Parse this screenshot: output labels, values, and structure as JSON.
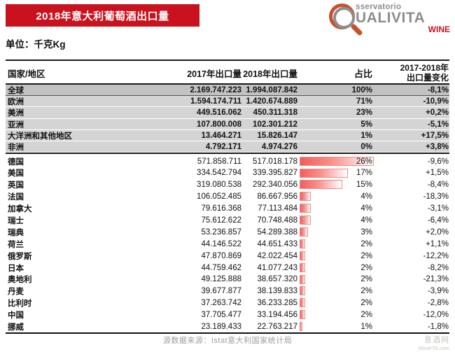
{
  "header": {
    "title": "2018年意大利葡萄酒出口量",
    "unit_label": "单位：千克Kg",
    "logo": {
      "line1": "sservatorio",
      "line2": "UALIVITA",
      "line3": "WINE"
    }
  },
  "table_header": {
    "change_line1": "2017-2018年",
    "change_line2": "出口量变化"
  },
  "footer": {
    "source": "源数据来源：Istat意大利国家统计局",
    "watermark_line1": "意酒网",
    "watermark_line2": "WineITA.com"
  },
  "colors": {
    "banner_red": "#c9121d",
    "logo_gray": "#8d8d8d",
    "logo_red_ring": "#c8502f",
    "total_row_bg": "#c2c2c2",
    "region_row_bg": "#d4d4d4",
    "bar_red": "#f15e5b",
    "bar_border": "#ec8b88"
  },
  "chart_data": {
    "type": "table",
    "title": "2018年意大利葡萄酒出口量",
    "unit": "千克Kg",
    "columns": [
      "国家/地区",
      "2017年出口量",
      "2018年出口量",
      "占比",
      "2017-2018年出口量变化"
    ],
    "region_rows": [
      {
        "name": "全球",
        "y2017": "2.169.747.223",
        "y2018": "1.994.087.842",
        "share": "100%",
        "share_pct": 100,
        "change": "-8,1%",
        "total": true
      },
      {
        "name": "欧洲",
        "y2017": "1.594.174.711",
        "y2018": "1.420.674.889",
        "share": "71%",
        "share_pct": 71,
        "change": "-10,9%"
      },
      {
        "name": "美洲",
        "y2017": "449.516.062",
        "y2018": "450.311.318",
        "share": "23%",
        "share_pct": 23,
        "change": "+0,2%"
      },
      {
        "name": "亚洲",
        "y2017": "107.800.008",
        "y2018": "102.301.212",
        "share": "5%",
        "share_pct": 5,
        "change": "-5,1%"
      },
      {
        "name": "大洋洲和其他地区",
        "y2017": "13.464.271",
        "y2018": "15.826.147",
        "share": "1%",
        "share_pct": 1,
        "change": "+17,5%"
      },
      {
        "name": "非洲",
        "y2017": "4.792.171",
        "y2018": "4.974.276",
        "share": "0%",
        "share_pct": 0,
        "change": "+3,8%"
      }
    ],
    "country_rows": [
      {
        "name": "德国",
        "y2017": "571.858.711",
        "y2018": "517.018.178",
        "share": "26%",
        "share_pct": 26,
        "change": "-9,6%"
      },
      {
        "name": "美国",
        "y2017": "334.542.794",
        "y2018": "339.395.827",
        "share": "17%",
        "share_pct": 17,
        "change": "+1,5%"
      },
      {
        "name": "英国",
        "y2017": "319.080.538",
        "y2018": "292.340.056",
        "share": "15%",
        "share_pct": 15,
        "change": "-8,4%"
      },
      {
        "name": "法国",
        "y2017": "106.052.485",
        "y2018": "86.667.956",
        "share": "4%",
        "share_pct": 4,
        "change": "-18,3%"
      },
      {
        "name": "加拿大",
        "y2017": "79.616.368",
        "y2018": "77.113.484",
        "share": "4%",
        "share_pct": 4,
        "change": "-3,1%"
      },
      {
        "name": "瑞士",
        "y2017": "75.612.622",
        "y2018": "70.748.488",
        "share": "4%",
        "share_pct": 4,
        "change": "-6,4%"
      },
      {
        "name": "瑞典",
        "y2017": "53.236.857",
        "y2018": "54.289.388",
        "share": "3%",
        "share_pct": 3,
        "change": "+2,0%"
      },
      {
        "name": "荷兰",
        "y2017": "44.146.522",
        "y2018": "44.651.433",
        "share": "2%",
        "share_pct": 2,
        "change": "+1,1%"
      },
      {
        "name": "俄罗斯",
        "y2017": "47.870.869",
        "y2018": "42.022.454",
        "share": "2%",
        "share_pct": 2,
        "change": "-12,2%"
      },
      {
        "name": "日本",
        "y2017": "44.759.462",
        "y2018": "41.077.243",
        "share": "2%",
        "share_pct": 2,
        "change": "-8,2%"
      },
      {
        "name": "奥地利",
        "y2017": "49.125.888",
        "y2018": "38.657.320",
        "share": "2%",
        "share_pct": 2,
        "change": "-21,3%"
      },
      {
        "name": "丹麦",
        "y2017": "39.677.877",
        "y2018": "38.139.833",
        "share": "2%",
        "share_pct": 2,
        "change": "-3,9%"
      },
      {
        "name": "比利时",
        "y2017": "37.263.742",
        "y2018": "36.233.285",
        "share": "2%",
        "share_pct": 2,
        "change": "-2,8%"
      },
      {
        "name": "中国",
        "y2017": "37.705.477",
        "y2018": "33.194.456",
        "share": "2%",
        "share_pct": 2,
        "change": "-12,0%"
      },
      {
        "name": "挪威",
        "y2017": "23.189.433",
        "y2018": "22.763.217",
        "share": "1%",
        "share_pct": 1,
        "change": "-1,8%"
      }
    ]
  }
}
